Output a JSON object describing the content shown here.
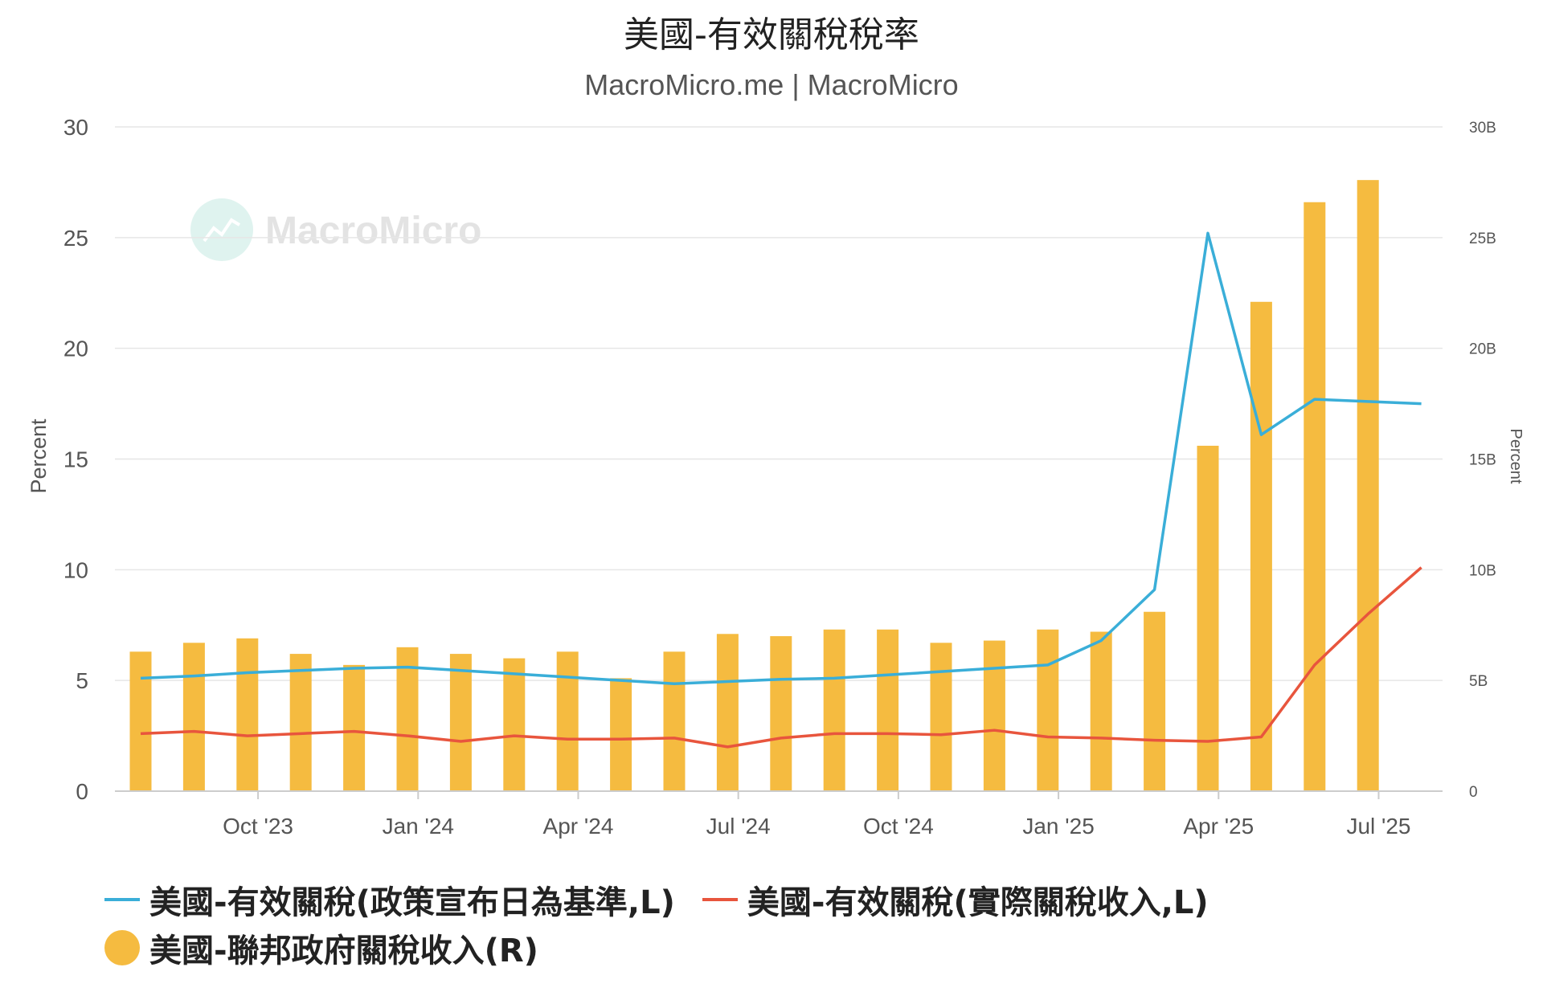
{
  "chart_data": {
    "type": "bar+line",
    "title": "美國-有效關稅稅率",
    "subtitle": "MacroMicro.me | MacroMicro",
    "watermark": "MacroMicro",
    "ylabel_left": "Percent",
    "ylabel_right": "Percent",
    "ylim_left": [
      0,
      30
    ],
    "ylim_right": [
      0,
      30
    ],
    "yticks_left": [
      "0",
      "5",
      "10",
      "15",
      "20",
      "25",
      "30"
    ],
    "yticks_right": [
      "0",
      "5B",
      "10B",
      "15B",
      "20B",
      "25B",
      "30B"
    ],
    "grid": true,
    "x_ticks": [
      {
        "label": "Oct '23",
        "index": 2.2
      },
      {
        "label": "Jan '24",
        "index": 5.2
      },
      {
        "label": "Apr '24",
        "index": 8.2
      },
      {
        "label": "Jul '24",
        "index": 11.2
      },
      {
        "label": "Oct '24",
        "index": 14.2
      },
      {
        "label": "Jan '25",
        "index": 17.2
      },
      {
        "label": "Apr '25",
        "index": 20.2
      },
      {
        "label": "Jul '25",
        "index": 23.2
      }
    ],
    "categories": [
      "2023-08",
      "2023-09",
      "2023-10",
      "2023-11",
      "2023-12",
      "2024-01",
      "2024-02",
      "2024-03",
      "2024-04",
      "2024-05",
      "2024-06",
      "2024-07",
      "2024-08",
      "2024-09",
      "2024-10",
      "2024-11",
      "2024-12",
      "2025-01",
      "2025-02",
      "2025-03",
      "2025-04",
      "2025-05",
      "2025-06",
      "2025-07",
      "2025-08"
    ],
    "bars": {
      "name": "美國-聯邦政府關稅收入(R)",
      "color": "#f5bb40",
      "values": [
        6.3,
        6.7,
        6.9,
        6.2,
        5.7,
        6.5,
        6.2,
        6.0,
        6.3,
        5.1,
        6.3,
        7.1,
        7.0,
        7.3,
        7.3,
        6.7,
        6.8,
        7.3,
        7.2,
        8.1,
        15.6,
        22.1,
        26.6,
        27.6,
        null
      ]
    },
    "series": [
      {
        "name": "美國-有效關稅(政策宣布日為基準,L)",
        "color": "#3aaed8",
        "values": [
          5.1,
          5.2,
          5.35,
          5.45,
          5.55,
          5.6,
          5.45,
          5.3,
          5.15,
          5.0,
          4.85,
          4.95,
          5.05,
          5.1,
          5.25,
          5.4,
          5.55,
          5.7,
          6.8,
          9.1,
          25.2,
          16.1,
          17.7,
          17.6,
          17.5
        ]
      },
      {
        "name": "美國-有效關稅(實際關稅收入,L)",
        "color": "#e8553d",
        "values": [
          2.6,
          2.7,
          2.5,
          2.6,
          2.7,
          2.5,
          2.25,
          2.5,
          2.35,
          2.35,
          2.4,
          2.0,
          2.4,
          2.6,
          2.6,
          2.55,
          2.75,
          2.45,
          2.4,
          2.3,
          2.25,
          2.45,
          5.7,
          8.0,
          10.1
        ]
      }
    ]
  }
}
